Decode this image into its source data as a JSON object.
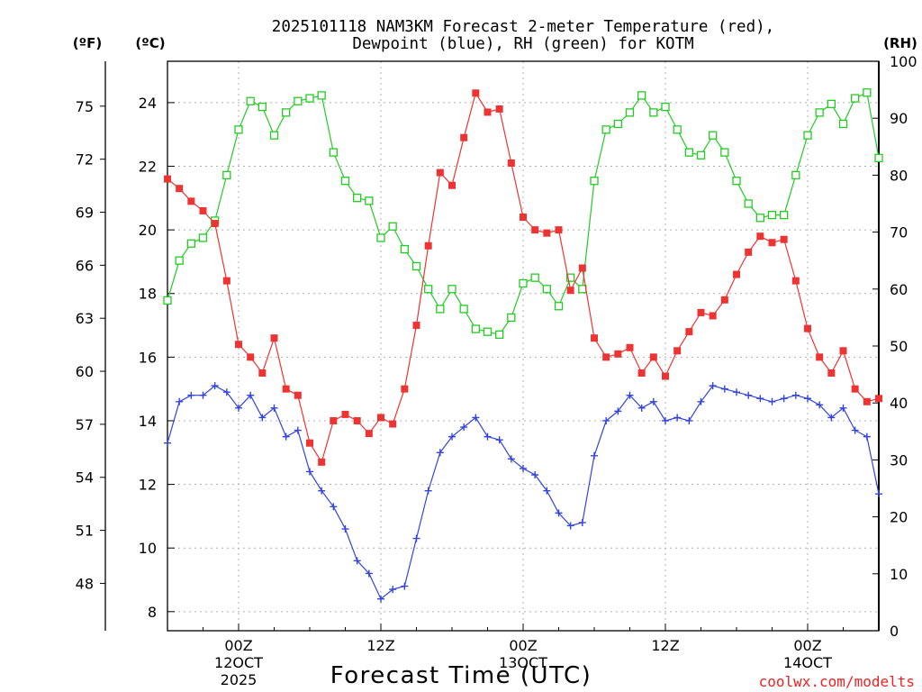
{
  "chart_data": {
    "type": "line",
    "title_line1": "2025101118 NAM3KM Forecast 2-meter Temperature (red),",
    "title_line2": "Dewpoint (blue), RH (green) for KOTM",
    "xlabel": "Forecast Time (UTC)",
    "credit": "coolwx.com/modelts",
    "units": {
      "fahrenheit": "(ºF)",
      "celsius": "(ºC)",
      "rh": "(RH)"
    },
    "x_hours_range": [
      0,
      60
    ],
    "y_celsius_range": [
      7.4,
      25.3
    ],
    "y_rh_range": [
      0,
      100
    ],
    "celsius_ticks": [
      "8",
      "10",
      "12",
      "14",
      "16",
      "18",
      "20",
      "22",
      "24"
    ],
    "fahrenheit_ticks": [
      "48",
      "51",
      "54",
      "57",
      "60",
      "63",
      "66",
      "69",
      "72",
      "75"
    ],
    "rh_ticks": [
      "0",
      "10",
      "20",
      "30",
      "40",
      "50",
      "60",
      "70",
      "80",
      "90",
      "100"
    ],
    "x_ticks": [
      {
        "hour": 6,
        "line1": "00Z",
        "line2": "12OCT",
        "line3": "2025"
      },
      {
        "hour": 18,
        "line1": "12Z",
        "line2": "",
        "line3": ""
      },
      {
        "hour": 30,
        "line1": "00Z",
        "line2": "13OCT",
        "line3": ""
      },
      {
        "hour": 42,
        "line1": "12Z",
        "line2": "",
        "line3": ""
      },
      {
        "hour": 54,
        "line1": "00Z",
        "line2": "14OCT",
        "line3": ""
      }
    ],
    "series": [
      {
        "name": "Temperature",
        "unit": "C",
        "color": "#ee3333",
        "marker": "filled-square",
        "values": [
          21.6,
          21.3,
          20.9,
          20.6,
          20.2,
          18.4,
          16.4,
          16.0,
          15.5,
          16.6,
          15.0,
          14.8,
          13.3,
          12.7,
          14.0,
          14.2,
          14.0,
          13.6,
          14.1,
          13.9,
          15.0,
          17.0,
          19.5,
          21.8,
          21.4,
          22.9,
          24.3,
          23.7,
          23.8,
          22.1,
          20.4,
          20.0,
          19.9,
          20.0,
          18.1,
          18.8,
          16.6,
          16.0,
          16.1,
          16.3,
          15.5,
          16.0,
          15.4,
          16.2,
          16.8,
          17.4,
          17.3,
          17.8,
          18.6,
          19.3,
          19.8,
          19.6,
          19.7,
          18.4,
          16.9,
          16.0,
          15.5,
          16.2,
          15.0,
          14.6,
          14.7
        ]
      },
      {
        "name": "Dewpoint",
        "unit": "C",
        "color": "#3344dd",
        "marker": "plus",
        "values": [
          13.3,
          14.6,
          14.8,
          14.8,
          15.1,
          14.9,
          14.4,
          14.8,
          14.1,
          14.4,
          13.5,
          13.7,
          12.4,
          11.8,
          11.3,
          10.6,
          9.6,
          9.2,
          8.4,
          8.7,
          8.8,
          10.3,
          11.8,
          13.0,
          13.5,
          13.8,
          14.1,
          13.5,
          13.4,
          12.8,
          12.5,
          12.3,
          11.8,
          11.1,
          10.7,
          10.8,
          12.9,
          14.0,
          14.3,
          14.8,
          14.4,
          14.6,
          14.0,
          14.1,
          14.0,
          14.6,
          15.1,
          15.0,
          14.9,
          14.8,
          14.7,
          14.6,
          14.7,
          14.8,
          14.7,
          14.5,
          14.1,
          14.4,
          13.7,
          13.5,
          11.7
        ]
      },
      {
        "name": "RH",
        "unit": "%",
        "color": "#22cc22",
        "marker": "open-square",
        "values": [
          58,
          65,
          68,
          69,
          72,
          80,
          88,
          93,
          92,
          87,
          91,
          93,
          93.5,
          94,
          84,
          79,
          76,
          75.5,
          69,
          71,
          67,
          64,
          60,
          56.5,
          60,
          56.5,
          53,
          52.5,
          52,
          55,
          61,
          62,
          60,
          57,
          62,
          60,
          79,
          88,
          89,
          91,
          94,
          91,
          92,
          88,
          84,
          83.5,
          87,
          84,
          79,
          75,
          72.5,
          73,
          73,
          80,
          87,
          91,
          92.5,
          89,
          93.5,
          94.5,
          83
        ]
      }
    ]
  }
}
